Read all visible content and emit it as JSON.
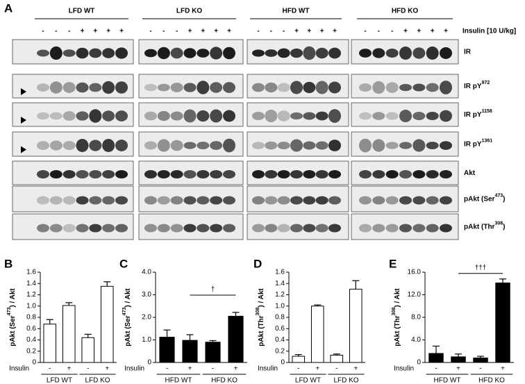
{
  "panel_a": {
    "panel": "A",
    "insulin_label": "Insulin [10 U/kg]",
    "groups": [
      {
        "label": "LFD WT",
        "lanes": [
          "-",
          "-",
          "-",
          "+",
          "+",
          "+",
          "+"
        ]
      },
      {
        "label": "LFD KO",
        "lanes": [
          "-",
          "-",
          "-",
          "+",
          "+",
          "+",
          "+"
        ]
      },
      {
        "label": "HFD WT",
        "lanes": [
          "-",
          "-",
          "-",
          "+",
          "+",
          "+",
          "+"
        ]
      },
      {
        "label": "HFD KO",
        "lanes": [
          "-",
          "-",
          "-",
          "+",
          "+",
          "+",
          "+"
        ]
      }
    ],
    "rows": [
      {
        "label": "IR"
      },
      {
        "label": "IR pY",
        "sup": "972"
      },
      {
        "label": "IR pY",
        "sup": "1158"
      },
      {
        "label": "IR pY",
        "sup": "1361"
      },
      {
        "label": "Akt"
      },
      {
        "label": "pAkt (Ser",
        "sup": "473",
        "end": ")"
      },
      {
        "label": "pAkt (Thr",
        "sup": "308",
        "end": ")"
      }
    ]
  },
  "chart_data": [
    {
      "type": "bar",
      "panel": "B",
      "y_label": {
        "text": "pAkt (Ser",
        "sup": "473",
        "end": ") / Akt"
      },
      "x_label": "Insulin",
      "categories": [
        "-",
        "+",
        "-",
        "+"
      ],
      "groups": [
        "LFD WT",
        "LFD KO"
      ],
      "values": [
        0.68,
        1.01,
        0.44,
        1.35
      ],
      "errors": [
        0.08,
        0.05,
        0.06,
        0.08
      ],
      "color": "#ffffff",
      "ylim": [
        0,
        1.6
      ],
      "yticks": [
        0,
        0.2,
        0.4,
        0.6,
        0.8,
        {
          "value": 1,
          "label": "1.0"
        },
        1.2,
        1.4,
        1.6
      ]
    },
    {
      "type": "bar",
      "panel": "C",
      "y_label": {
        "text": "pAkt (Ser",
        "sup": "473",
        "end": ") / Akt"
      },
      "x_label": "Insulin",
      "categories": [
        "-",
        "+",
        "-",
        "+"
      ],
      "groups": [
        "HFD WT",
        "HFD KO"
      ],
      "values": [
        1.12,
        0.98,
        0.9,
        2.05
      ],
      "errors": [
        0.32,
        0.25,
        0.07,
        0.17
      ],
      "color": "#000000",
      "ylim": [
        0,
        4
      ],
      "yticks": [
        0,
        {
          "value": 1,
          "label": "1.0"
        },
        {
          "value": 2,
          "label": "2.0"
        },
        {
          "value": 3,
          "label": "3.0"
        },
        {
          "value": 4,
          "label": "4.0"
        }
      ],
      "annotation": "†"
    },
    {
      "type": "bar",
      "panel": "D",
      "y_label": {
        "text": "pAkt (Thr",
        "sup": "308",
        "end": ") / Akt"
      },
      "x_label": "Insulin",
      "categories": [
        "-",
        "+",
        "-",
        "+"
      ],
      "groups": [
        "LFD WT",
        "LFD KO"
      ],
      "values": [
        0.11,
        1.0,
        0.13,
        1.3
      ],
      "errors": [
        0.03,
        0.02,
        0.02,
        0.15
      ],
      "color": "#ffffff",
      "ylim": [
        0,
        1.6
      ],
      "yticks": [
        0,
        0.2,
        0.4,
        0.6,
        0.8,
        {
          "value": 1,
          "label": "1.0"
        },
        1.2,
        1.4,
        1.6
      ]
    },
    {
      "type": "bar",
      "panel": "E",
      "y_label": {
        "text": "pAkt (Thr",
        "sup": "308",
        "end": ") / Akt"
      },
      "x_label": "Insulin",
      "categories": [
        "-",
        "+",
        "-",
        "+"
      ],
      "groups": [
        "HFD WT",
        "HFD KO"
      ],
      "values": [
        1.6,
        1.0,
        0.8,
        14.1
      ],
      "errors": [
        1.3,
        0.5,
        0.3,
        0.7
      ],
      "color": "#000000",
      "ylim": [
        0,
        16
      ],
      "yticks": [
        0,
        {
          "value": 4,
          "label": "4.0"
        },
        {
          "value": 8,
          "label": "8.0"
        },
        {
          "value": 12,
          "label": "12.0"
        },
        {
          "value": 16,
          "label": "16.0"
        }
      ],
      "annotation": "†††"
    }
  ]
}
